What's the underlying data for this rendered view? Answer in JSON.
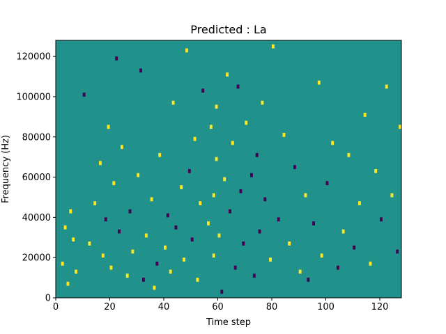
{
  "chart_data": {
    "type": "heatmap",
    "title": "Predicted : La",
    "xlabel": "Time step",
    "ylabel": "Frequency (Hz)",
    "xlim": [
      0,
      128
    ],
    "ylim": [
      0,
      128000
    ],
    "x_ticks": [
      0,
      20,
      40,
      60,
      80,
      100,
      120
    ],
    "x_tick_labels": [
      "0",
      "20",
      "40",
      "60",
      "80",
      "100",
      "120"
    ],
    "y_ticks": [
      0,
      20000,
      40000,
      60000,
      80000,
      100000,
      120000
    ],
    "y_tick_labels": [
      "0",
      "20000",
      "40000",
      "60000",
      "80000",
      "100000",
      "120000"
    ],
    "grid": false,
    "legend": "none",
    "value_levels": [
      -1,
      0,
      1
    ],
    "colors": {
      "background_level": "#21918c",
      "low_level": "#440154",
      "high_level": "#fde725"
    },
    "n_time_steps": 128,
    "n_frequency_bins": 64,
    "frequency_bin_hz": 2000,
    "cells": [
      {
        "t": 2,
        "f": 16000,
        "v": 1
      },
      {
        "t": 3,
        "f": 34000,
        "v": 1
      },
      {
        "t": 4,
        "f": 6000,
        "v": 1
      },
      {
        "t": 5,
        "f": 42000,
        "v": 1
      },
      {
        "t": 6,
        "f": 28000,
        "v": 1
      },
      {
        "t": 7,
        "f": 12000,
        "v": 1
      },
      {
        "t": 9,
        "f": 54000,
        "v": 0
      },
      {
        "t": 10,
        "f": 100000,
        "v": -1
      },
      {
        "t": 12,
        "f": 26000,
        "v": 1
      },
      {
        "t": 14,
        "f": 46000,
        "v": 1
      },
      {
        "t": 16,
        "f": 66000,
        "v": 1
      },
      {
        "t": 17,
        "f": 20000,
        "v": 1
      },
      {
        "t": 18,
        "f": 38000,
        "v": -1
      },
      {
        "t": 19,
        "f": 84000,
        "v": 1
      },
      {
        "t": 20,
        "f": 14000,
        "v": 1
      },
      {
        "t": 21,
        "f": 56000,
        "v": 1
      },
      {
        "t": 22,
        "f": 118000,
        "v": -1
      },
      {
        "t": 23,
        "f": 32000,
        "v": -1
      },
      {
        "t": 24,
        "f": 74000,
        "v": 1
      },
      {
        "t": 26,
        "f": 10000,
        "v": 1
      },
      {
        "t": 27,
        "f": 42000,
        "v": -1
      },
      {
        "t": 28,
        "f": 22000,
        "v": 1
      },
      {
        "t": 30,
        "f": 60000,
        "v": 1
      },
      {
        "t": 31,
        "f": 112000,
        "v": -1
      },
      {
        "t": 32,
        "f": 8000,
        "v": -1
      },
      {
        "t": 33,
        "f": 30000,
        "v": 1
      },
      {
        "t": 35,
        "f": 48000,
        "v": 1
      },
      {
        "t": 36,
        "f": 4000,
        "v": 1
      },
      {
        "t": 37,
        "f": 16000,
        "v": -1
      },
      {
        "t": 38,
        "f": 70000,
        "v": 1
      },
      {
        "t": 40,
        "f": 24000,
        "v": 1
      },
      {
        "t": 41,
        "f": 40000,
        "v": -1
      },
      {
        "t": 42,
        "f": 12000,
        "v": 1
      },
      {
        "t": 43,
        "f": 96000,
        "v": 1
      },
      {
        "t": 44,
        "f": 34000,
        "v": -1
      },
      {
        "t": 46,
        "f": 54000,
        "v": 1
      },
      {
        "t": 47,
        "f": 18000,
        "v": 1
      },
      {
        "t": 48,
        "f": 122000,
        "v": 1
      },
      {
        "t": 49,
        "f": 62000,
        "v": -1
      },
      {
        "t": 50,
        "f": 28000,
        "v": -1
      },
      {
        "t": 51,
        "f": 78000,
        "v": 1
      },
      {
        "t": 52,
        "f": 8000,
        "v": 1
      },
      {
        "t": 53,
        "f": 46000,
        "v": 1
      },
      {
        "t": 54,
        "f": 102000,
        "v": -1
      },
      {
        "t": 56,
        "f": 36000,
        "v": 1
      },
      {
        "t": 57,
        "f": 84000,
        "v": 1
      },
      {
        "t": 58,
        "f": 20000,
        "v": 1
      },
      {
        "t": 58,
        "f": 50000,
        "v": 1
      },
      {
        "t": 59,
        "f": 68000,
        "v": 1
      },
      {
        "t": 59,
        "f": 94000,
        "v": 1
      },
      {
        "t": 60,
        "f": 30000,
        "v": 1
      },
      {
        "t": 61,
        "f": 2000,
        "v": -1
      },
      {
        "t": 62,
        "f": 58000,
        "v": 1
      },
      {
        "t": 63,
        "f": 110000,
        "v": 1
      },
      {
        "t": 64,
        "f": 42000,
        "v": -1
      },
      {
        "t": 65,
        "f": 76000,
        "v": 1
      },
      {
        "t": 66,
        "f": 14000,
        "v": -1
      },
      {
        "t": 67,
        "f": 104000,
        "v": -1
      },
      {
        "t": 68,
        "f": 52000,
        "v": -1
      },
      {
        "t": 69,
        "f": 26000,
        "v": -1
      },
      {
        "t": 70,
        "f": 86000,
        "v": 1
      },
      {
        "t": 72,
        "f": 60000,
        "v": -1
      },
      {
        "t": 73,
        "f": 10000,
        "v": -1
      },
      {
        "t": 74,
        "f": 70000,
        "v": -1
      },
      {
        "t": 75,
        "f": 32000,
        "v": -1
      },
      {
        "t": 76,
        "f": 96000,
        "v": 1
      },
      {
        "t": 77,
        "f": 48000,
        "v": -1
      },
      {
        "t": 79,
        "f": 18000,
        "v": 1
      },
      {
        "t": 80,
        "f": 124000,
        "v": 1
      },
      {
        "t": 82,
        "f": 38000,
        "v": -1
      },
      {
        "t": 84,
        "f": 80000,
        "v": 1
      },
      {
        "t": 86,
        "f": 26000,
        "v": 1
      },
      {
        "t": 88,
        "f": 64000,
        "v": -1
      },
      {
        "t": 90,
        "f": 12000,
        "v": 1
      },
      {
        "t": 92,
        "f": 50000,
        "v": 1
      },
      {
        "t": 93,
        "f": 8000,
        "v": -1
      },
      {
        "t": 95,
        "f": 36000,
        "v": -1
      },
      {
        "t": 97,
        "f": 106000,
        "v": 1
      },
      {
        "t": 98,
        "f": 20000,
        "v": 1
      },
      {
        "t": 100,
        "f": 56000,
        "v": -1
      },
      {
        "t": 102,
        "f": 76000,
        "v": 1
      },
      {
        "t": 104,
        "f": 14000,
        "v": -1
      },
      {
        "t": 106,
        "f": 32000,
        "v": 1
      },
      {
        "t": 108,
        "f": 70000,
        "v": 1
      },
      {
        "t": 110,
        "f": 24000,
        "v": -1
      },
      {
        "t": 112,
        "f": 46000,
        "v": 1
      },
      {
        "t": 114,
        "f": 90000,
        "v": 1
      },
      {
        "t": 116,
        "f": 16000,
        "v": 1
      },
      {
        "t": 118,
        "f": 62000,
        "v": 1
      },
      {
        "t": 120,
        "f": 38000,
        "v": -1
      },
      {
        "t": 122,
        "f": 104000,
        "v": 1
      },
      {
        "t": 124,
        "f": 50000,
        "v": 1
      },
      {
        "t": 126,
        "f": 22000,
        "v": -1
      },
      {
        "t": 127,
        "f": 84000,
        "v": 1
      }
    ]
  }
}
